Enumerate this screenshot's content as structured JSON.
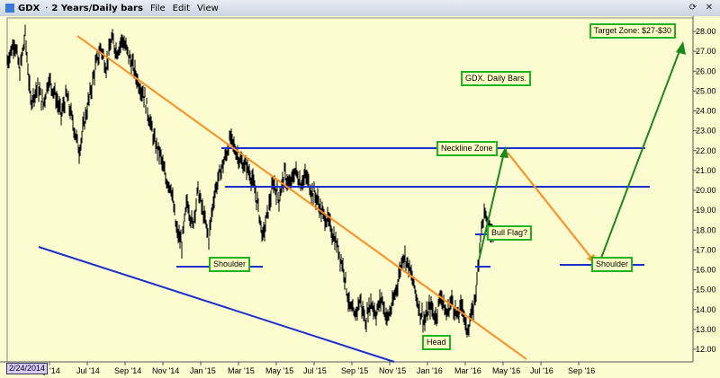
{
  "window": {
    "symbol": "GDX",
    "separator": "·",
    "timeframe": "2 Years/Daily bars",
    "menu": [
      "File",
      "Edit",
      "View"
    ]
  },
  "annotations": {
    "target": "Target Zone: $27-$30",
    "chart_label": "GDX. Daily Bars.",
    "neckline": "Neckline Zone",
    "bull_flag": "Bull Flag?",
    "shoulder_left": "Shoulder",
    "shoulder_right": "Shoulder",
    "head": "Head"
  },
  "date_tag": "2/24/2014",
  "colors": {
    "background": "#fdfbd0",
    "price_bars": "#000000",
    "blue_lines": "#1a2fcc",
    "orange_lines": "#ff8c1a",
    "green_arrows": "#1a8a1a",
    "annotation_border": "#1fb31f"
  },
  "chart_data": {
    "type": "bar",
    "ylim": [
      12.0,
      28.0
    ],
    "yticks": [
      "28.00",
      "27.00",
      "26.00",
      "25.00",
      "24.00",
      "23.00",
      "22.00",
      "21.00",
      "20.00",
      "19.00",
      "18.00",
      "17.00",
      "16.00",
      "15.00",
      "14.00",
      "13.00",
      "12.00"
    ],
    "xtick_labels": [
      "ay '14",
      "Jul '14",
      "Sep '14",
      "Nov '14",
      "Jan '15",
      "Mar '15",
      "May '15",
      "Jul '15",
      "Sep '15",
      "Nov '15",
      "Jan '16",
      "Mar '16",
      "May '16",
      "Jul '16",
      "Sep '16"
    ],
    "series": [
      {
        "values": [
          [
            0,
            26.5
          ],
          [
            8,
            27.5
          ],
          [
            14,
            26.0
          ],
          [
            20,
            27.8
          ],
          [
            26,
            24.5
          ],
          [
            34,
            25.2
          ],
          [
            40,
            24.3
          ],
          [
            46,
            25.6
          ],
          [
            52,
            25.0
          ],
          [
            60,
            23.8
          ],
          [
            66,
            24.8
          ],
          [
            72,
            23.6
          ],
          [
            80,
            22.0
          ],
          [
            86,
            23.5
          ],
          [
            92,
            24.8
          ],
          [
            98,
            26.2
          ],
          [
            104,
            27.2
          ],
          [
            110,
            26.2
          ],
          [
            116,
            27.6
          ],
          [
            122,
            27.0
          ],
          [
            128,
            27.6
          ],
          [
            134,
            26.9
          ],
          [
            140,
            26.2
          ],
          [
            146,
            25.4
          ],
          [
            152,
            24.8
          ],
          [
            158,
            23.6
          ],
          [
            164,
            22.4
          ],
          [
            170,
            21.8
          ],
          [
            176,
            20.6
          ],
          [
            182,
            20.2
          ],
          [
            188,
            18.0
          ],
          [
            194,
            17.3
          ],
          [
            200,
            19.5
          ],
          [
            206,
            18.2
          ],
          [
            212,
            20.0
          ],
          [
            218,
            18.8
          ],
          [
            224,
            17.6
          ],
          [
            230,
            19.8
          ],
          [
            236,
            20.8
          ],
          [
            242,
            21.6
          ],
          [
            248,
            22.6
          ],
          [
            254,
            22.0
          ],
          [
            260,
            21.4
          ],
          [
            266,
            21.2
          ],
          [
            272,
            20.6
          ],
          [
            278,
            19.4
          ],
          [
            284,
            17.6
          ],
          [
            290,
            19.0
          ],
          [
            296,
            20.4
          ],
          [
            302,
            19.6
          ],
          [
            308,
            20.8
          ],
          [
            314,
            20.2
          ],
          [
            320,
            21.0
          ],
          [
            326,
            20.4
          ],
          [
            332,
            20.7
          ],
          [
            338,
            20.0
          ],
          [
            344,
            19.6
          ],
          [
            350,
            18.8
          ],
          [
            356,
            18.5
          ],
          [
            362,
            17.8
          ],
          [
            368,
            17.0
          ],
          [
            374,
            16.0
          ],
          [
            380,
            14.2
          ],
          [
            386,
            13.6
          ],
          [
            392,
            14.5
          ],
          [
            398,
            13.4
          ],
          [
            404,
            14.4
          ],
          [
            410,
            13.8
          ],
          [
            416,
            14.6
          ],
          [
            422,
            13.5
          ],
          [
            428,
            14.2
          ],
          [
            434,
            15.4
          ],
          [
            440,
            16.8
          ],
          [
            446,
            16.2
          ],
          [
            452,
            15.2
          ],
          [
            458,
            14.0
          ],
          [
            464,
            13.4
          ],
          [
            470,
            14.2
          ],
          [
            476,
            13.6
          ],
          [
            482,
            14.8
          ],
          [
            488,
            13.7
          ],
          [
            494,
            14.5
          ],
          [
            500,
            13.6
          ],
          [
            506,
            14.3
          ],
          [
            510,
            12.9
          ],
          [
            514,
            13.4
          ],
          [
            518,
            14.0
          ],
          [
            522,
            15.4
          ],
          [
            526,
            17.8
          ],
          [
            530,
            18.8
          ],
          [
            534,
            18.3
          ],
          [
            538,
            17.8
          ],
          [
            542,
            18.4
          ]
        ]
      }
    ]
  }
}
